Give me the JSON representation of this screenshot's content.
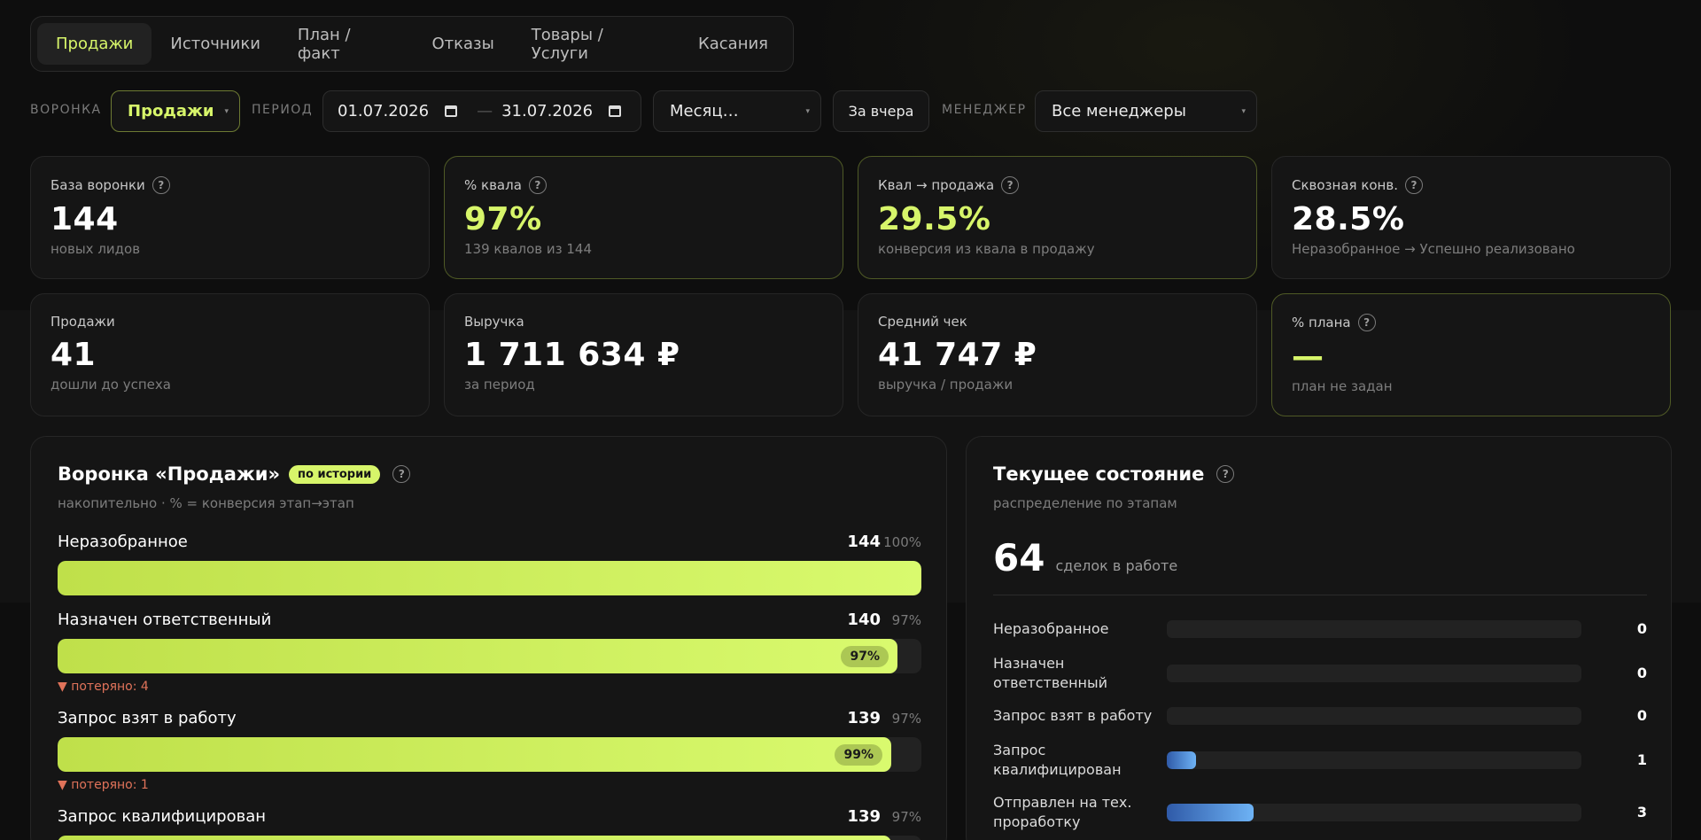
{
  "tabs": [
    "Продажи",
    "Источники",
    "План / факт",
    "Отказы",
    "Товары / Услуги",
    "Касания"
  ],
  "active_tab": "Продажи",
  "filters": {
    "funnel_label": "ВОРОНКА",
    "funnel_value": "Продажи",
    "period_label": "ПЕРИОД",
    "date_from": "01.07.2026",
    "date_to": "31.07.2026",
    "date_sep": "—",
    "granularity": "Месяц…",
    "yesterday_button": "За вчера",
    "manager_label": "МЕНЕДЖЕР",
    "manager_value": "Все менеджеры"
  },
  "kpis": [
    {
      "title": "База воронки",
      "help": true,
      "value": "144",
      "sub": "новых лидов"
    },
    {
      "title": "% квала",
      "help": true,
      "value": "97%",
      "sub": "139 квалов из 144"
    },
    {
      "title": "Квал → продажа",
      "help": true,
      "value": "29.5%",
      "sub": "конверсия из квала в продажу"
    },
    {
      "title": "Сквозная конв.",
      "help": true,
      "value": "28.5%",
      "sub": "Неразобранное → Успешно реализовано"
    },
    {
      "title": "Продажи",
      "help": false,
      "value": "41",
      "sub": "дошли до успеха"
    },
    {
      "title": "Выручка",
      "help": false,
      "value": "1 711 634 ₽",
      "sub": "за период"
    },
    {
      "title": "Средний чек",
      "help": false,
      "value": "41 747 ₽",
      "sub": "выручка / продажи"
    },
    {
      "title": "% плана",
      "help": true,
      "value": "—",
      "sub": "план не задан"
    }
  ],
  "funnel": {
    "title": "Воронка «Продажи»",
    "badge": "по истории",
    "subtitle": "накопительно · % = конверсия этап→этап",
    "stages": [
      {
        "name": "Неразобранное",
        "count": "144",
        "pct": "100%",
        "fill": 1.0,
        "chip": "",
        "lost": ""
      },
      {
        "name": "Назначен ответственный",
        "count": "140",
        "pct": "97%",
        "fill": 0.972,
        "chip": "97%",
        "lost": "▼ потеряно: 4"
      },
      {
        "name": "Запрос взят в работу",
        "count": "139",
        "pct": "97%",
        "fill": 0.965,
        "chip": "99%",
        "lost": "▼ потеряно: 1"
      },
      {
        "name": "Запрос квалифицирован",
        "count": "139",
        "pct": "97%",
        "fill": 0.965,
        "chip": "",
        "lost": ""
      }
    ]
  },
  "state": {
    "title": "Текущее состояние",
    "subtitle": "распределение по этапам",
    "total": "64",
    "total_label": "сделок в работе",
    "stages": [
      {
        "name": "Неразобранное",
        "value": "0",
        "fill": 0.0
      },
      {
        "name": "Назначен ответственный",
        "value": "0",
        "fill": 0.0
      },
      {
        "name": "Запрос взят в работу",
        "value": "0",
        "fill": 0.0
      },
      {
        "name": "Запрос квалифицирован",
        "value": "1",
        "fill": 0.07
      },
      {
        "name": "Отправлен на тех. проработку",
        "value": "3",
        "fill": 0.21
      }
    ]
  }
}
